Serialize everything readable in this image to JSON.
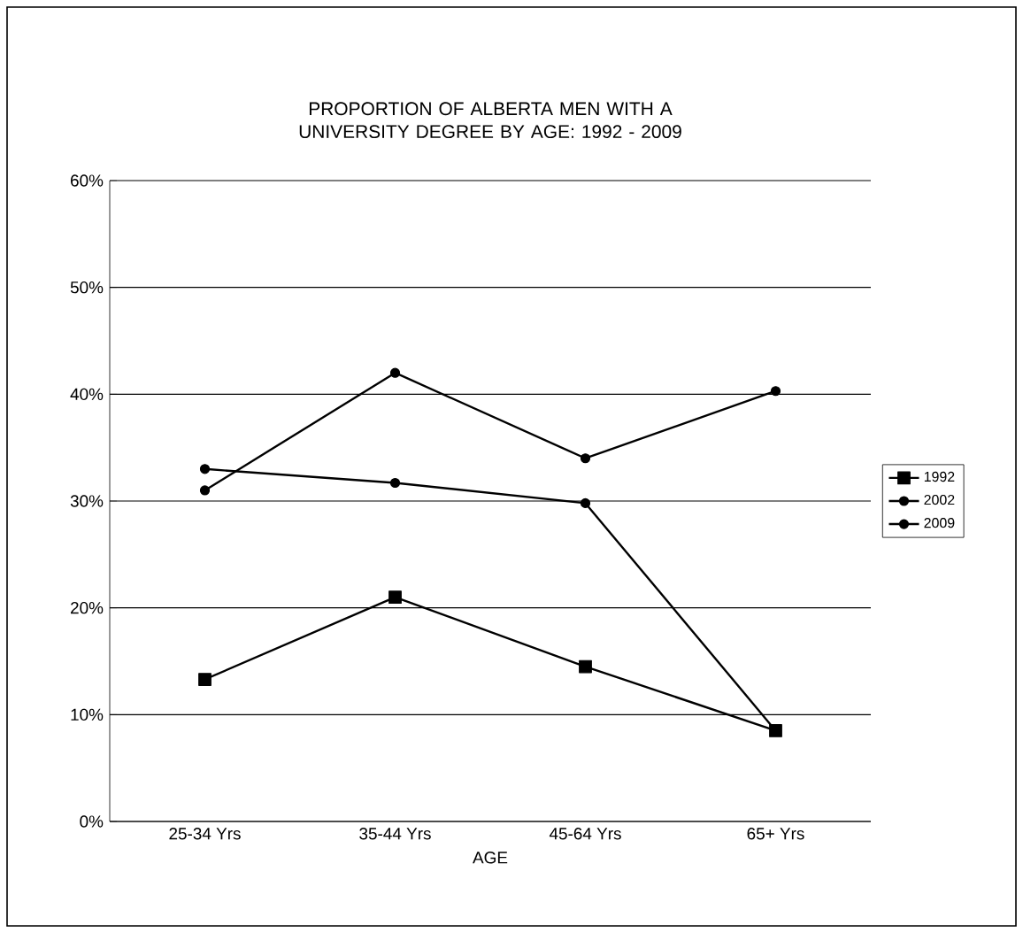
{
  "chart_data": {
    "type": "line",
    "title": "PROPORTION OF ALBERTA MEN WITH A UNIVERSITY DEGREE BY AGE: 1992 - 2009",
    "xlabel": "AGE",
    "categories": [
      "25-34 Yrs",
      "35-44 Yrs",
      "45-64 Yrs",
      "65+ Yrs"
    ],
    "series": [
      {
        "name": "1992",
        "color": "#000000",
        "marker": "square",
        "values": [
          13.3,
          21,
          14.5,
          8.5
        ]
      },
      {
        "name": "2002",
        "color": "#000000",
        "marker": "circle",
        "values": [
          33,
          31.7,
          29.8,
          8.5
        ]
      },
      {
        "name": "2009",
        "color": "#000000",
        "marker": "circle",
        "values": [
          31,
          42,
          34,
          40.3
        ]
      }
    ],
    "ylim": [
      0,
      60
    ],
    "yticks": [
      {
        "value": 0,
        "label": "0%"
      },
      {
        "value": 10,
        "label": "10%"
      },
      {
        "value": 20,
        "label": "20%"
      },
      {
        "value": 30,
        "label": "30%"
      },
      {
        "value": 40,
        "label": "40%"
      },
      {
        "value": 50,
        "label": "50%"
      },
      {
        "value": 60,
        "label": "60%"
      }
    ],
    "grid": "y",
    "legend": "right",
    "line_style": "solid"
  }
}
